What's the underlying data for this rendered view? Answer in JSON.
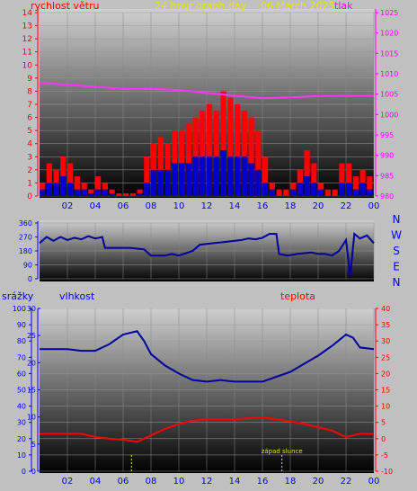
{
  "header": {
    "title": "24 hour graph day",
    "date": "06 March 2025",
    "left_label": "rychlost větru",
    "right_label": "tlak"
  },
  "colors": {
    "wind": "#ff0000",
    "gust_bar": "#0000cc",
    "pressure": "#ff33ff",
    "direction": "#0000a0",
    "humidity": "#0000a0",
    "temperature": "#ff0000",
    "axis_red": "#ff0000",
    "axis_blue": "#0000ff",
    "axis_magenta": "#ff00ff",
    "title_yellow": "#e6e600"
  },
  "chart_data": [
    {
      "type": "bar",
      "id": "wind-pressure",
      "ylabel_left": "rychlost větru",
      "ylabel_right": "tlak",
      "left_ticks": [
        0,
        1,
        2,
        3,
        4,
        5,
        6,
        7,
        8,
        9,
        10,
        11,
        12,
        13,
        14
      ],
      "right_ticks": [
        980,
        985,
        990,
        995,
        1000,
        1005,
        1010,
        1015,
        1020,
        1025
      ],
      "x_ticks": [
        "02",
        "04",
        "06",
        "08",
        "10",
        "12",
        "14",
        "16",
        "18",
        "20",
        "22",
        "00"
      ],
      "ylim_left": [
        0,
        14
      ],
      "ylim_right": [
        980,
        1025
      ],
      "series": {
        "wind_gust": [
          {
            "h": 0.0,
            "v": 1.0
          },
          {
            "h": 0.5,
            "v": 2.5
          },
          {
            "h": 1.0,
            "v": 2.0
          },
          {
            "h": 1.5,
            "v": 3.0
          },
          {
            "h": 2.0,
            "v": 2.5
          },
          {
            "h": 2.5,
            "v": 1.5
          },
          {
            "h": 3.0,
            "v": 1.0
          },
          {
            "h": 3.5,
            "v": 0.5
          },
          {
            "h": 4.0,
            "v": 1.5
          },
          {
            "h": 4.5,
            "v": 1.0
          },
          {
            "h": 5.0,
            "v": 0.5
          },
          {
            "h": 5.5,
            "v": 0.2
          },
          {
            "h": 6.0,
            "v": 0.2
          },
          {
            "h": 6.5,
            "v": 0.2
          },
          {
            "h": 7.0,
            "v": 0.5
          },
          {
            "h": 7.5,
            "v": 3.0
          },
          {
            "h": 8.0,
            "v": 4.0
          },
          {
            "h": 8.5,
            "v": 4.5
          },
          {
            "h": 9.0,
            "v": 4.0
          },
          {
            "h": 9.5,
            "v": 5.0
          },
          {
            "h": 10.0,
            "v": 5.0
          },
          {
            "h": 10.5,
            "v": 5.5
          },
          {
            "h": 11.0,
            "v": 6.0
          },
          {
            "h": 11.5,
            "v": 6.5
          },
          {
            "h": 12.0,
            "v": 7.0
          },
          {
            "h": 12.5,
            "v": 6.5
          },
          {
            "h": 13.0,
            "v": 8.0
          },
          {
            "h": 13.5,
            "v": 7.5
          },
          {
            "h": 14.0,
            "v": 7.0
          },
          {
            "h": 14.5,
            "v": 6.5
          },
          {
            "h": 15.0,
            "v": 6.0
          },
          {
            "h": 15.5,
            "v": 5.0
          },
          {
            "h": 16.0,
            "v": 3.0
          },
          {
            "h": 16.5,
            "v": 1.0
          },
          {
            "h": 17.0,
            "v": 0.5
          },
          {
            "h": 17.5,
            "v": 0.5
          },
          {
            "h": 18.0,
            "v": 1.0
          },
          {
            "h": 18.5,
            "v": 2.0
          },
          {
            "h": 19.0,
            "v": 3.5
          },
          {
            "h": 19.5,
            "v": 2.5
          },
          {
            "h": 20.0,
            "v": 1.0
          },
          {
            "h": 20.5,
            "v": 0.5
          },
          {
            "h": 21.0,
            "v": 0.5
          },
          {
            "h": 21.5,
            "v": 2.5
          },
          {
            "h": 22.0,
            "v": 2.5
          },
          {
            "h": 22.5,
            "v": 1.5
          },
          {
            "h": 23.0,
            "v": 2.0
          },
          {
            "h": 23.5,
            "v": 1.5
          }
        ],
        "wind_avg": [
          {
            "h": 0.0,
            "v": 0.5
          },
          {
            "h": 0.5,
            "v": 1.0
          },
          {
            "h": 1.0,
            "v": 1.0
          },
          {
            "h": 1.5,
            "v": 1.5
          },
          {
            "h": 2.0,
            "v": 1.0
          },
          {
            "h": 2.5,
            "v": 0.5
          },
          {
            "h": 3.0,
            "v": 0.5
          },
          {
            "h": 3.5,
            "v": 0.2
          },
          {
            "h": 4.0,
            "v": 0.5
          },
          {
            "h": 4.5,
            "v": 0.5
          },
          {
            "h": 5.0,
            "v": 0.2
          },
          {
            "h": 5.5,
            "v": 0.0
          },
          {
            "h": 6.0,
            "v": 0.0
          },
          {
            "h": 6.5,
            "v": 0.0
          },
          {
            "h": 7.0,
            "v": 0.2
          },
          {
            "h": 7.5,
            "v": 1.0
          },
          {
            "h": 8.0,
            "v": 2.0
          },
          {
            "h": 8.5,
            "v": 2.0
          },
          {
            "h": 9.0,
            "v": 2.0
          },
          {
            "h": 9.5,
            "v": 2.5
          },
          {
            "h": 10.0,
            "v": 2.5
          },
          {
            "h": 10.5,
            "v": 2.5
          },
          {
            "h": 11.0,
            "v": 3.0
          },
          {
            "h": 11.5,
            "v": 3.0
          },
          {
            "h": 12.0,
            "v": 3.0
          },
          {
            "h": 12.5,
            "v": 3.0
          },
          {
            "h": 13.0,
            "v": 3.5
          },
          {
            "h": 13.5,
            "v": 3.0
          },
          {
            "h": 14.0,
            "v": 3.0
          },
          {
            "h": 14.5,
            "v": 3.0
          },
          {
            "h": 15.0,
            "v": 2.5
          },
          {
            "h": 15.5,
            "v": 2.0
          },
          {
            "h": 16.0,
            "v": 1.0
          },
          {
            "h": 16.5,
            "v": 0.5
          },
          {
            "h": 17.0,
            "v": 0.0
          },
          {
            "h": 17.5,
            "v": 0.0
          },
          {
            "h": 18.0,
            "v": 0.5
          },
          {
            "h": 18.5,
            "v": 1.0
          },
          {
            "h": 19.0,
            "v": 1.5
          },
          {
            "h": 19.5,
            "v": 1.0
          },
          {
            "h": 20.0,
            "v": 0.5
          },
          {
            "h": 20.5,
            "v": 0.0
          },
          {
            "h": 21.0,
            "v": 0.0
          },
          {
            "h": 21.5,
            "v": 1.0
          },
          {
            "h": 22.0,
            "v": 1.0
          },
          {
            "h": 22.5,
            "v": 0.5
          },
          {
            "h": 23.0,
            "v": 1.0
          },
          {
            "h": 23.5,
            "v": 0.5
          }
        ],
        "pressure": [
          {
            "h": 0,
            "v": 1007.8
          },
          {
            "h": 2,
            "v": 1007.3
          },
          {
            "h": 4,
            "v": 1006.8
          },
          {
            "h": 6,
            "v": 1006.3
          },
          {
            "h": 8,
            "v": 1006.3
          },
          {
            "h": 10,
            "v": 1006.0
          },
          {
            "h": 12,
            "v": 1005.3
          },
          {
            "h": 14,
            "v": 1004.6
          },
          {
            "h": 16,
            "v": 1004.0
          },
          {
            "h": 18,
            "v": 1004.2
          },
          {
            "h": 20,
            "v": 1004.5
          },
          {
            "h": 22,
            "v": 1004.6
          },
          {
            "h": 24,
            "v": 1004.6
          }
        ]
      }
    },
    {
      "type": "line",
      "id": "direction",
      "left_ticks": [
        0,
        90,
        180,
        270,
        360
      ],
      "compass_labels": [
        "N",
        "W",
        "S",
        "E",
        "N"
      ],
      "ylim": [
        0,
        360
      ],
      "series": [
        {
          "h": 0.0,
          "v": 230
        },
        {
          "h": 0.5,
          "v": 270
        },
        {
          "h": 1.0,
          "v": 245
        },
        {
          "h": 1.5,
          "v": 270
        },
        {
          "h": 2.0,
          "v": 250
        },
        {
          "h": 2.5,
          "v": 265
        },
        {
          "h": 3.0,
          "v": 255
        },
        {
          "h": 3.5,
          "v": 275
        },
        {
          "h": 4.0,
          "v": 260
        },
        {
          "h": 4.5,
          "v": 270
        },
        {
          "h": 4.7,
          "v": 200
        },
        {
          "h": 5.5,
          "v": 200
        },
        {
          "h": 6.5,
          "v": 200
        },
        {
          "h": 7.5,
          "v": 190
        },
        {
          "h": 8.0,
          "v": 150
        },
        {
          "h": 9.0,
          "v": 150
        },
        {
          "h": 9.5,
          "v": 160
        },
        {
          "h": 10.0,
          "v": 150
        },
        {
          "h": 11.0,
          "v": 180
        },
        {
          "h": 11.5,
          "v": 220
        },
        {
          "h": 12.5,
          "v": 230
        },
        {
          "h": 13.5,
          "v": 240
        },
        {
          "h": 14.5,
          "v": 250
        },
        {
          "h": 15.0,
          "v": 260
        },
        {
          "h": 15.5,
          "v": 255
        },
        {
          "h": 16.0,
          "v": 265
        },
        {
          "h": 16.5,
          "v": 290
        },
        {
          "h": 17.0,
          "v": 290
        },
        {
          "h": 17.2,
          "v": 160
        },
        {
          "h": 17.8,
          "v": 150
        },
        {
          "h": 18.5,
          "v": 160
        },
        {
          "h": 19.5,
          "v": 170
        },
        {
          "h": 20.0,
          "v": 160
        },
        {
          "h": 20.5,
          "v": 160
        },
        {
          "h": 21.0,
          "v": 150
        },
        {
          "h": 21.5,
          "v": 180
        },
        {
          "h": 22.0,
          "v": 250
        },
        {
          "h": 22.3,
          "v": 20
        },
        {
          "h": 22.6,
          "v": 290
        },
        {
          "h": 23.0,
          "v": 260
        },
        {
          "h": 23.5,
          "v": 280
        },
        {
          "h": 24.0,
          "v": 230
        }
      ]
    },
    {
      "type": "line",
      "id": "humidity-temperature",
      "labels": {
        "rain": "srážky",
        "humidity": "vlhkost",
        "temperature": "teplota",
        "sunset": "západ slunce"
      },
      "rain_ticks": [
        0,
        10,
        20,
        30,
        40,
        50,
        60,
        70,
        80,
        90,
        100
      ],
      "humidity_ticks": [
        0,
        5,
        10,
        15,
        20,
        25,
        30
      ],
      "temperature_ticks": [
        -10,
        -5,
        0,
        5,
        10,
        15,
        20,
        25,
        30,
        35,
        40
      ],
      "x_ticks": [
        "02",
        "04",
        "06",
        "08",
        "10",
        "12",
        "14",
        "16",
        "18",
        "20",
        "22",
        "00"
      ],
      "markers": {
        "sunrise_hour": 6.6,
        "sunset_hour": 17.4
      },
      "series": {
        "humidity": [
          {
            "h": 0,
            "v": 75
          },
          {
            "h": 2,
            "v": 75
          },
          {
            "h": 3,
            "v": 74
          },
          {
            "h": 4,
            "v": 74
          },
          {
            "h": 5,
            "v": 78
          },
          {
            "h": 6,
            "v": 84
          },
          {
            "h": 7,
            "v": 86
          },
          {
            "h": 7.5,
            "v": 80
          },
          {
            "h": 8,
            "v": 72
          },
          {
            "h": 9,
            "v": 65
          },
          {
            "h": 10,
            "v": 60
          },
          {
            "h": 11,
            "v": 56
          },
          {
            "h": 12,
            "v": 55
          },
          {
            "h": 13,
            "v": 56
          },
          {
            "h": 14,
            "v": 55
          },
          {
            "h": 15,
            "v": 55
          },
          {
            "h": 16,
            "v": 55
          },
          {
            "h": 17,
            "v": 58
          },
          {
            "h": 18,
            "v": 61
          },
          {
            "h": 19,
            "v": 66
          },
          {
            "h": 20,
            "v": 71
          },
          {
            "h": 21,
            "v": 77
          },
          {
            "h": 22,
            "v": 84
          },
          {
            "h": 22.5,
            "v": 82
          },
          {
            "h": 23,
            "v": 76
          },
          {
            "h": 24,
            "v": 75
          }
        ],
        "temperature": [
          {
            "h": 0,
            "v": 1.5
          },
          {
            "h": 2,
            "v": 1.5
          },
          {
            "h": 3,
            "v": 1.5
          },
          {
            "h": 4,
            "v": 0.5
          },
          {
            "h": 5,
            "v": 0.0
          },
          {
            "h": 6,
            "v": -0.3
          },
          {
            "h": 7,
            "v": -1.0
          },
          {
            "h": 8,
            "v": 1.0
          },
          {
            "h": 9,
            "v": 3.0
          },
          {
            "h": 10,
            "v": 4.5
          },
          {
            "h": 11,
            "v": 5.5
          },
          {
            "h": 12,
            "v": 6.0
          },
          {
            "h": 13,
            "v": 6.0
          },
          {
            "h": 14,
            "v": 6.0
          },
          {
            "h": 15,
            "v": 6.3
          },
          {
            "h": 16,
            "v": 6.5
          },
          {
            "h": 17,
            "v": 6.0
          },
          {
            "h": 18,
            "v": 5.3
          },
          {
            "h": 19,
            "v": 4.5
          },
          {
            "h": 20,
            "v": 3.5
          },
          {
            "h": 21,
            "v": 2.5
          },
          {
            "h": 22,
            "v": 0.5
          },
          {
            "h": 22.5,
            "v": 1.0
          },
          {
            "h": 23,
            "v": 1.5
          },
          {
            "h": 24,
            "v": 1.5
          }
        ]
      }
    }
  ]
}
